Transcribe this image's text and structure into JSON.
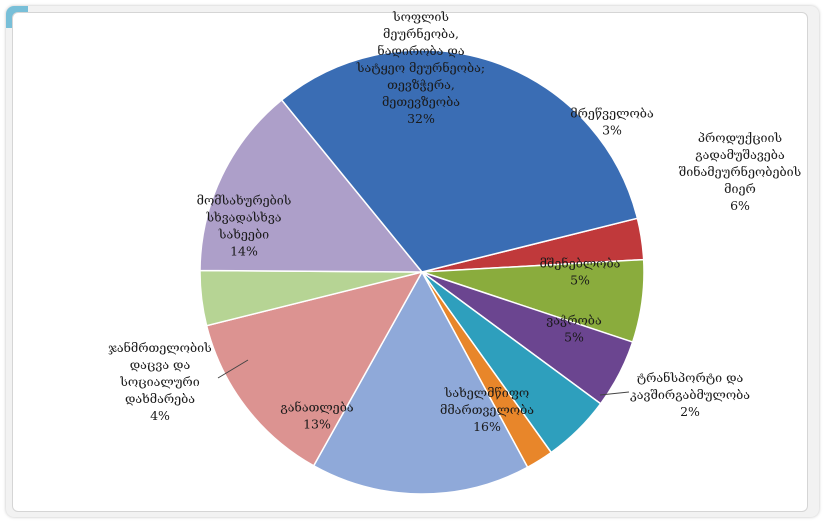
{
  "colors": {
    "agriculture": "#3a6db4",
    "fishing": "#c0393b",
    "manufacturing": "#8aac3d",
    "construction": "#6b4590",
    "trade": "#2e9fbd",
    "transport": "#e8862a",
    "public_admin": "#8fa9d9",
    "education": "#dc9391",
    "health": "#b6d494",
    "services": "#ad9fc9"
  },
  "chart_data": {
    "type": "pie",
    "title": "",
    "slices": [
      {
        "key": "fishing",
        "label": [
          "მრეწველობა",
          "3%"
        ],
        "value": 3
      },
      {
        "key": "manufacturing",
        "label": [
          "პროდუქციის",
          "გადამუშავება",
          "შინამეურნეობების",
          "მიერ",
          "6%"
        ],
        "value": 6
      },
      {
        "key": "construction",
        "label": [
          "მშენებლობა",
          "5%"
        ],
        "value": 5
      },
      {
        "key": "trade",
        "label": [
          "ვაჭრობა",
          "5%"
        ],
        "value": 5
      },
      {
        "key": "transport",
        "label": [
          "ტრანსპორტი და",
          "კავშირგაბმულობა",
          "2%"
        ],
        "value": 2
      },
      {
        "key": "public_admin",
        "label": [
          "სახელმწიფო",
          "მმართველობა",
          "16%"
        ],
        "value": 16
      },
      {
        "key": "education",
        "label": [
          "განათლება",
          "13%"
        ],
        "value": 13
      },
      {
        "key": "health",
        "label": [
          "ჯანმრთელობის",
          "დაცვა და",
          "სოციალური",
          "დახმარება",
          "4%"
        ],
        "value": 4
      },
      {
        "key": "services",
        "label": [
          "მომსახურების",
          "სხვადასხვა",
          "სახეები",
          "14%"
        ],
        "value": 14
      },
      {
        "key": "agriculture",
        "label": [
          "სოფლის",
          "მეურნეობა,",
          "ნადირობა და",
          "სატყეო მეურნეობა;",
          "თევზჭერა,",
          "მეთევზეობა",
          "32%"
        ],
        "value": 32
      }
    ]
  }
}
